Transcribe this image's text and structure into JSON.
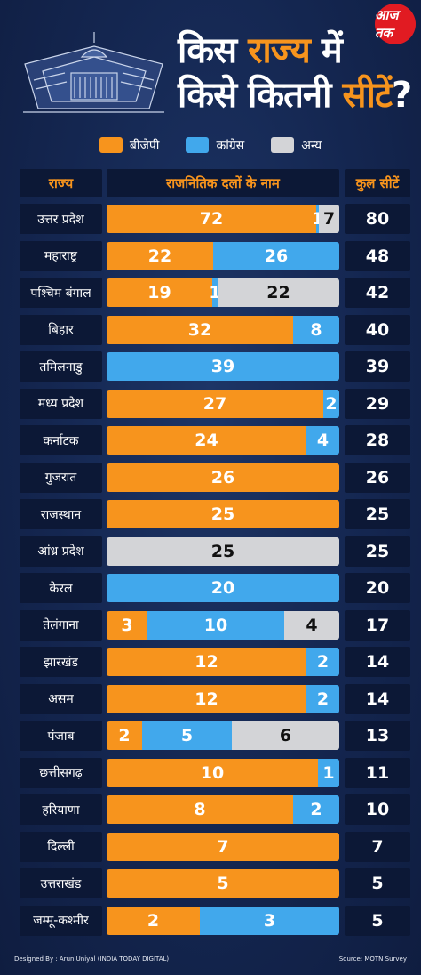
{
  "header": {
    "title_line1_a": "किस",
    "title_line1_b": "राज्य",
    "title_line1_c": "में",
    "title_line2_a": "किसे कितनी",
    "title_line2_b": "सीटें",
    "title_line2_c": "?",
    "logo_text": "आज तक"
  },
  "legend": [
    {
      "label": "बीजेपी",
      "color": "#f7941d"
    },
    {
      "label": "कांग्रेस",
      "color": "#41a8ec"
    },
    {
      "label": "अन्य",
      "color": "#d3d4d7"
    }
  ],
  "columns": {
    "state": "राज्य",
    "parties": "राजनितिक दलों के नाम",
    "total": "कुल सीटें"
  },
  "chart_data": {
    "type": "bar",
    "stacked": true,
    "orientation": "horizontal",
    "categories": [
      "उत्तर प्रदेश",
      "महाराष्ट्र",
      "पश्चिम बंगाल",
      "बिहार",
      "तमिलनाडु",
      "मध्य प्रदेश",
      "कर्नाटक",
      "गुजरात",
      "राजस्थान",
      "आंध्र प्रदेश",
      "केरल",
      "तेलंगाना",
      "झारखंड",
      "असम",
      "पंजाब",
      "छत्तीसगढ़",
      "हरियाणा",
      "दिल्ली",
      "उत्तराखंड",
      "जम्मू-कश्मीर"
    ],
    "series": [
      {
        "name": "बीजेपी",
        "color": "#f7941d",
        "values": [
          72,
          22,
          19,
          32,
          0,
          27,
          24,
          26,
          25,
          0,
          0,
          3,
          12,
          12,
          2,
          10,
          8,
          7,
          5,
          2
        ]
      },
      {
        "name": "कांग्रेस",
        "color": "#41a8ec",
        "values": [
          1,
          26,
          1,
          8,
          39,
          2,
          4,
          0,
          0,
          0,
          20,
          10,
          2,
          2,
          5,
          1,
          2,
          0,
          0,
          3
        ]
      },
      {
        "name": "अन्य",
        "color": "#d3d4d7",
        "values": [
          7,
          0,
          22,
          0,
          0,
          0,
          0,
          0,
          0,
          25,
          0,
          4,
          0,
          0,
          6,
          0,
          0,
          0,
          0,
          0
        ]
      }
    ],
    "totals": [
      80,
      48,
      42,
      40,
      39,
      29,
      28,
      26,
      25,
      25,
      20,
      17,
      14,
      14,
      13,
      11,
      10,
      7,
      5,
      5
    ]
  },
  "footer": {
    "credit": "Designed By : Arun Uniyal (INDIA TODAY DIGITAL)",
    "source": "Source:  MOTN Survey"
  }
}
